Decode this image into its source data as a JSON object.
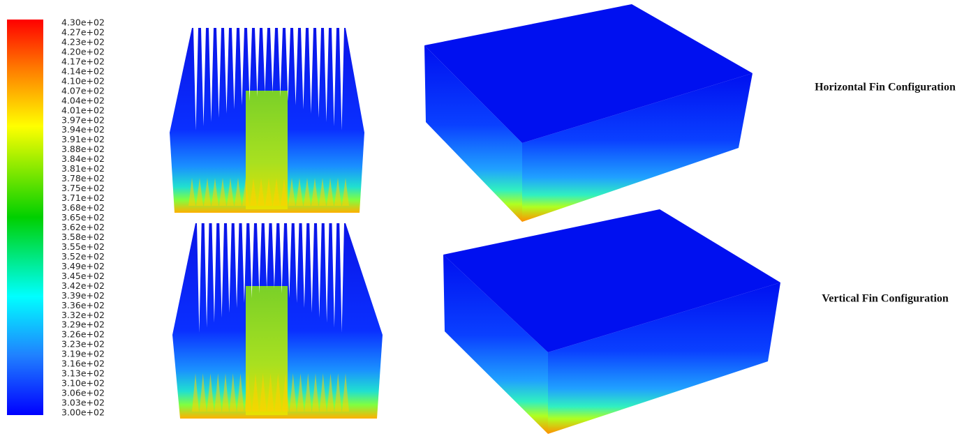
{
  "colorbar": {
    "labels": [
      "4.30e+02",
      "4.27e+02",
      "4.23e+02",
      "4.20e+02",
      "4.17e+02",
      "4.14e+02",
      "4.10e+02",
      "4.07e+02",
      "4.04e+02",
      "4.01e+02",
      "3.97e+02",
      "3.94e+02",
      "3.91e+02",
      "3.88e+02",
      "3.84e+02",
      "3.81e+02",
      "3.78e+02",
      "3.75e+02",
      "3.71e+02",
      "3.68e+02",
      "3.65e+02",
      "3.62e+02",
      "3.58e+02",
      "3.55e+02",
      "3.52e+02",
      "3.49e+02",
      "3.45e+02",
      "3.42e+02",
      "3.39e+02",
      "3.36e+02",
      "3.32e+02",
      "3.29e+02",
      "3.26e+02",
      "3.23e+02",
      "3.19e+02",
      "3.16e+02",
      "3.13e+02",
      "3.10e+02",
      "3.06e+02",
      "3.03e+02",
      "3.00e+02"
    ]
  },
  "captions": {
    "horizontal": "Horizontal Fin Configuration",
    "vertical": "Vertical Fin Configuration"
  }
}
